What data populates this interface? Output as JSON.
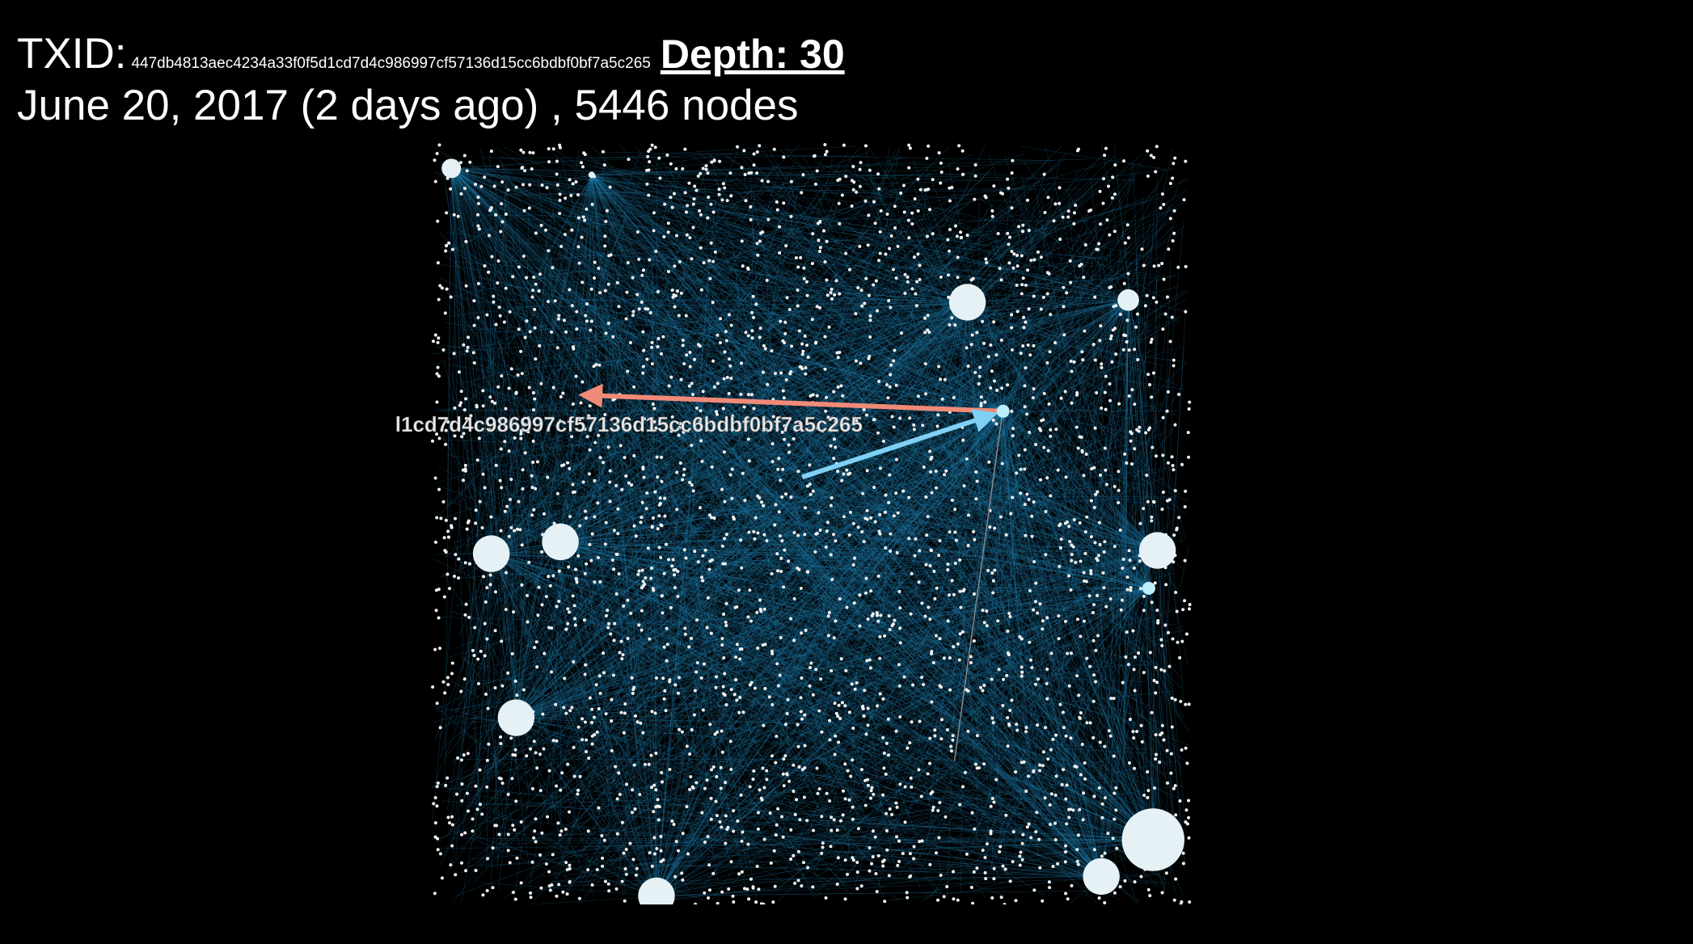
{
  "header": {
    "txid_label": "TXID:",
    "txid": "447db4813aec4234a33f0f5d1cd7d4c986997cf57136d15cc6bdbf0bf7a5c265",
    "depth": "Depth: 30",
    "summary": "June 20, 2017 (2 days ago) , 5446 nodes"
  },
  "graph": {
    "node_label": "l1cd7d4c986997cf57136d15cc6bdbf0bf7a5c265"
  }
}
